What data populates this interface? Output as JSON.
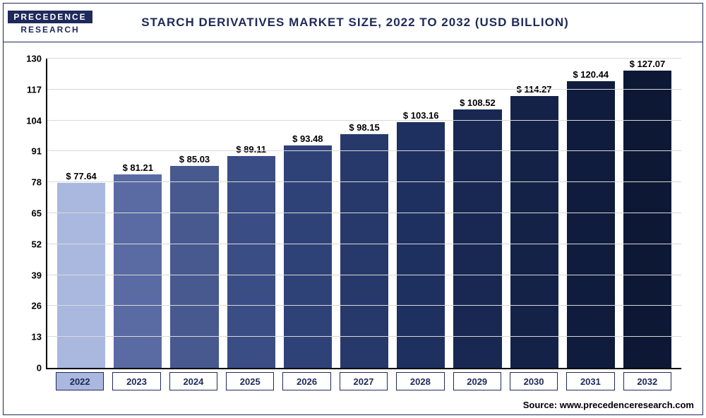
{
  "logo": {
    "line1": "PRECEDENCE",
    "line2": "RESEARCH"
  },
  "title": "STARCH DERIVATIVES MARKET SIZE, 2022 TO 2032 (USD BILLION)",
  "title_fontsize": 17,
  "source": "Source: www.precedenceresearch.com",
  "chart": {
    "type": "bar",
    "background_color": "#ffffff",
    "axis_color": "#000000",
    "grid_color": "#d9d9d9",
    "border_color": "#1e2a5a",
    "ylim": [
      0,
      130
    ],
    "yticks": [
      0,
      13,
      26,
      39,
      52,
      65,
      78,
      91,
      104,
      117,
      130
    ],
    "ytick_fontsize": 13,
    "value_label_fontsize": 13,
    "value_prefix": "$ ",
    "xcat_fontsize": 13,
    "xcat_highlight_index": 0,
    "xcat_highlight_bg": "#aab8e0",
    "categories": [
      "2022",
      "2023",
      "2024",
      "2025",
      "2026",
      "2027",
      "2028",
      "2029",
      "2030",
      "2031",
      "2032"
    ],
    "values": [
      77.64,
      81.21,
      85.03,
      89.11,
      93.48,
      98.15,
      103.16,
      108.52,
      114.27,
      120.44,
      127.07
    ],
    "bar_colors": [
      "#aab8e0",
      "#5a6aa3",
      "#47598f",
      "#3b4d85",
      "#2f4278",
      "#27396b",
      "#1e3060",
      "#182852",
      "#142247",
      "#101c3d",
      "#0d1834"
    ],
    "source_fontsize": 13
  }
}
